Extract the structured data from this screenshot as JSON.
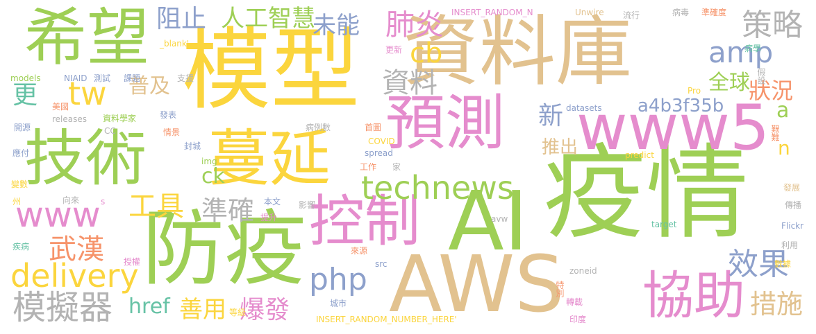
{
  "palette": {
    "green": "#9ecf55",
    "gold": "#fbd53d",
    "tan": "#e2c28f",
    "pink": "#e58ccd",
    "blue": "#8da0cb",
    "orange": "#f6936a",
    "grey": "#b3b3b3",
    "teal": "#66c2a5"
  },
  "words": [
    {
      "text": "疫情",
      "color": "green"
    },
    {
      "text": "模型",
      "color": "gold"
    },
    {
      "text": "資料庫",
      "color": "tan"
    },
    {
      "text": "AWS",
      "color": "tan"
    },
    {
      "text": "AI",
      "color": "green"
    },
    {
      "text": "防疫",
      "color": "green"
    },
    {
      "text": "希望",
      "color": "green"
    },
    {
      "text": "技術",
      "color": "green"
    },
    {
      "text": "蔓延",
      "color": "gold"
    },
    {
      "text": "控制",
      "color": "pink"
    },
    {
      "text": "預測",
      "color": "pink"
    },
    {
      "text": "www5",
      "color": "pink"
    },
    {
      "text": "協助",
      "color": "pink"
    },
    {
      "text": "technews",
      "color": "green"
    },
    {
      "text": "模擬器",
      "color": "grey"
    },
    {
      "text": "www",
      "color": "pink"
    },
    {
      "text": "delivery",
      "color": "gold"
    },
    {
      "text": "策略",
      "color": "grey"
    },
    {
      "text": "效果",
      "color": "blue"
    },
    {
      "text": "措施",
      "color": "tan"
    },
    {
      "text": "php",
      "color": "blue"
    },
    {
      "text": "amp",
      "color": "blue"
    },
    {
      "text": "資料",
      "color": "grey"
    },
    {
      "text": "肺炎",
      "color": "pink"
    },
    {
      "text": "cb",
      "color": "gold"
    },
    {
      "text": "tw",
      "color": "gold"
    },
    {
      "text": "工具",
      "color": "gold"
    },
    {
      "text": "準確",
      "color": "grey"
    },
    {
      "text": "人工智慧",
      "color": "green"
    },
    {
      "text": "阻止",
      "color": "blue"
    },
    {
      "text": "未能",
      "color": "blue"
    },
    {
      "text": "a4b3f35b",
      "color": "blue"
    },
    {
      "text": "全球",
      "color": "green"
    },
    {
      "text": "狀況",
      "color": "orange"
    },
    {
      "text": "武漢",
      "color": "orange"
    },
    {
      "text": "爆發",
      "color": "pink"
    },
    {
      "text": "善用",
      "color": "gold"
    },
    {
      "text": "href",
      "color": "teal"
    },
    {
      "text": "ck",
      "color": "green"
    },
    {
      "text": "更",
      "color": "teal"
    },
    {
      "text": "新",
      "color": "blue"
    },
    {
      "text": "推出",
      "color": "tan"
    },
    {
      "text": "普及",
      "color": "tan"
    },
    {
      "text": "a",
      "color": "green"
    },
    {
      "text": "n",
      "color": "gold"
    },
    {
      "text": "INSERT_RANDOM_N",
      "color": "pink"
    },
    {
      "text": "Unwire",
      "color": "tan"
    },
    {
      "text": "流行",
      "color": "grey"
    },
    {
      "text": "病毒",
      "color": "grey"
    },
    {
      "text": "準確度",
      "color": "orange"
    },
    {
      "text": "病學",
      "color": "teal"
    },
    {
      "text": "_blank'",
      "color": "gold"
    },
    {
      "text": "models",
      "color": "green"
    },
    {
      "text": "NIAID",
      "color": "blue"
    },
    {
      "text": "測試",
      "color": "blue"
    },
    {
      "text": "課題",
      "color": "blue"
    },
    {
      "text": "支援",
      "color": "grey"
    },
    {
      "text": "更新",
      "color": "pink"
    },
    {
      "text": "假設",
      "color": "grey"
    },
    {
      "text": "美國",
      "color": "orange"
    },
    {
      "text": "發表",
      "color": "blue"
    },
    {
      "text": "資料學家",
      "color": "green"
    },
    {
      "text": "開源",
      "color": "blue"
    },
    {
      "text": "releases",
      "color": "grey"
    },
    {
      "text": "CC",
      "color": "grey"
    },
    {
      "text": "情景",
      "color": "orange"
    },
    {
      "text": "病例數",
      "color": "grey"
    },
    {
      "text": "首圖",
      "color": "orange"
    },
    {
      "text": "datasets",
      "color": "blue"
    },
    {
      "text": "Pro",
      "color": "gold"
    },
    {
      "text": "艱難",
      "color": "orange"
    },
    {
      "text": "應付",
      "color": "blue"
    },
    {
      "text": "封城",
      "color": "blue"
    },
    {
      "text": "COVID",
      "color": "gold"
    },
    {
      "text": "spread",
      "color": "blue"
    },
    {
      "text": "predict",
      "color": "gold"
    },
    {
      "text": "img",
      "color": "green"
    },
    {
      "text": "工作",
      "color": "orange"
    },
    {
      "text": "家",
      "color": "grey"
    },
    {
      "text": "變數",
      "color": "gold"
    },
    {
      "text": "發展",
      "color": "tan"
    },
    {
      "text": "州",
      "color": "gold"
    },
    {
      "text": "向來",
      "color": "grey"
    },
    {
      "text": "s",
      "color": "pink"
    },
    {
      "text": "本文",
      "color": "blue"
    },
    {
      "text": "影響",
      "color": "grey"
    },
    {
      "text": "傳播",
      "color": "grey"
    },
    {
      "text": "提升",
      "color": "pink"
    },
    {
      "text": "avw",
      "color": "grey"
    },
    {
      "text": "target",
      "color": "teal"
    },
    {
      "text": "Flickr",
      "color": "blue"
    },
    {
      "text": "疾病",
      "color": "teal"
    },
    {
      "text": "授權",
      "color": "pink"
    },
    {
      "text": "利用",
      "color": "grey"
    },
    {
      "text": "數據",
      "color": "gold"
    },
    {
      "text": "來源",
      "color": "orange"
    },
    {
      "text": "src",
      "color": "blue"
    },
    {
      "text": "zoneid",
      "color": "grey"
    },
    {
      "text": "特別",
      "color": "orange"
    },
    {
      "text": "轉載",
      "color": "pink"
    },
    {
      "text": "等級",
      "color": "gold"
    },
    {
      "text": "城市",
      "color": "blue"
    },
    {
      "text": "印度",
      "color": "pink"
    },
    {
      "text": "INSERT_RANDOM_NUMBER_HERE'",
      "color": "gold"
    }
  ]
}
